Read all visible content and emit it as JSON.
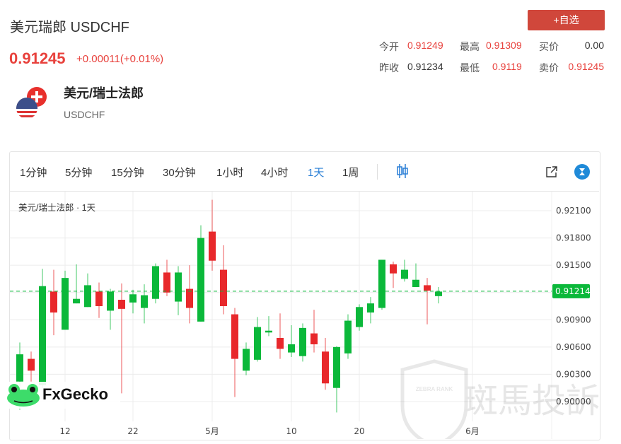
{
  "header": {
    "title": "美元瑞郎 USDCHF",
    "price": "0.91245",
    "change": "+0.00011(+0.01%)",
    "add_button": "+自选"
  },
  "quotes": [
    {
      "label": "今开",
      "value": "0.91249",
      "color": "#e8413c"
    },
    {
      "label": "最高",
      "value": "0.91309",
      "color": "#e8413c"
    },
    {
      "label": "买价",
      "value": "0.00",
      "color": "#333333"
    },
    {
      "label": "昨收",
      "value": "0.91234",
      "color": "#333333"
    },
    {
      "label": "最低",
      "value": "0.9119",
      "color": "#e8413c"
    },
    {
      "label": "卖价",
      "value": "0.91245",
      "color": "#e8413c"
    }
  ],
  "instrument": {
    "name": "美元/瑞士法郎",
    "code": "USDCHF",
    "icon": "usd-chf-flag-icon"
  },
  "toolbar": {
    "timeframes": [
      "1分钟",
      "5分钟",
      "15分钟",
      "30分钟",
      "1小时",
      "4小时",
      "1天",
      "1周"
    ],
    "active": "1天",
    "icons": [
      "candlestick-icon",
      "popout-icon",
      "tradingview-logo-icon"
    ]
  },
  "watermarks": {
    "fxgecko": "FxGecko",
    "zebra": "斑馬投訴",
    "zebra_badge": "ZEBRA RANK"
  },
  "colors": {
    "up": "#0bb83a",
    "down": "#e8282b",
    "accent": "#2a7fd6",
    "button": "#d0473b"
  },
  "chart_data": {
    "type": "candlestick",
    "legend": "美元/瑞士法郎 · 1天",
    "ylim": [
      0.8985,
      0.9225
    ],
    "y_ticks": [
      "0.92100",
      "0.91800",
      "0.91500",
      "0.90900",
      "0.90600",
      "0.90300",
      "0.90000"
    ],
    "y_tick_values": [
      0.921,
      0.918,
      0.915,
      0.909,
      0.906,
      0.903,
      0.9
    ],
    "x_ticks": [
      {
        "label": "12",
        "index": 4
      },
      {
        "label": "22",
        "index": 10
      },
      {
        "label": "5月",
        "index": 17
      },
      {
        "label": "10",
        "index": 24
      },
      {
        "label": "20",
        "index": 30
      },
      {
        "label": "6月",
        "index": 40
      }
    ],
    "last_price": "0.91214",
    "last_value": 0.91214,
    "grid": true,
    "ohlc": [
      [
        0.9022,
        0.9065,
        0.8991,
        0.9052
      ],
      [
        0.9047,
        0.9055,
        0.9022,
        0.9034
      ],
      [
        0.9018,
        0.9146,
        0.901,
        0.9127
      ],
      [
        0.9121,
        0.9145,
        0.9073,
        0.9098
      ],
      [
        0.9079,
        0.9144,
        0.9079,
        0.9136
      ],
      [
        0.9108,
        0.9151,
        0.9108,
        0.9113
      ],
      [
        0.9104,
        0.9141,
        0.9104,
        0.9128
      ],
      [
        0.9121,
        0.9131,
        0.9092,
        0.9105
      ],
      [
        0.91,
        0.9124,
        0.9079,
        0.9121
      ],
      [
        0.9112,
        0.913,
        0.9009,
        0.9102
      ],
      [
        0.9109,
        0.9123,
        0.9097,
        0.9118
      ],
      [
        0.9103,
        0.9129,
        0.9086,
        0.9117
      ],
      [
        0.9113,
        0.9152,
        0.9108,
        0.9149
      ],
      [
        0.9142,
        0.9156,
        0.9116,
        0.912
      ],
      [
        0.911,
        0.9149,
        0.9095,
        0.9142
      ],
      [
        0.9124,
        0.915,
        0.9086,
        0.9103
      ],
      [
        0.9088,
        0.9194,
        0.9088,
        0.918
      ],
      [
        0.9187,
        0.9222,
        0.9144,
        0.9155
      ],
      [
        0.9145,
        0.9172,
        0.9096,
        0.9105
      ],
      [
        0.9096,
        0.9103,
        0.9005,
        0.9047
      ],
      [
        0.9034,
        0.9065,
        0.9029,
        0.9058
      ],
      [
        0.9046,
        0.9093,
        0.9044,
        0.9082
      ],
      [
        0.9076,
        0.9094,
        0.9072,
        0.9078
      ],
      [
        0.907,
        0.9097,
        0.9047,
        0.9058
      ],
      [
        0.9054,
        0.9084,
        0.9049,
        0.9063
      ],
      [
        0.905,
        0.9086,
        0.9044,
        0.9081
      ],
      [
        0.9075,
        0.9101,
        0.9054,
        0.9063
      ],
      [
        0.9055,
        0.907,
        0.9013,
        0.902
      ],
      [
        0.9015,
        0.9061,
        0.8988,
        0.906
      ],
      [
        0.9053,
        0.9096,
        0.9047,
        0.9089
      ],
      [
        0.9082,
        0.9107,
        0.9078,
        0.9104
      ],
      [
        0.9098,
        0.9115,
        0.9086,
        0.9108
      ],
      [
        0.9103,
        0.9156,
        0.9101,
        0.9156
      ],
      [
        0.9151,
        0.9154,
        0.9125,
        0.9141
      ],
      [
        0.9135,
        0.9156,
        0.9132,
        0.9145
      ],
      [
        0.9126,
        0.9152,
        0.9126,
        0.9134
      ],
      [
        0.9128,
        0.9136,
        0.9085,
        0.9122
      ],
      [
        0.9116,
        0.9126,
        0.9108,
        0.9121
      ]
    ]
  }
}
